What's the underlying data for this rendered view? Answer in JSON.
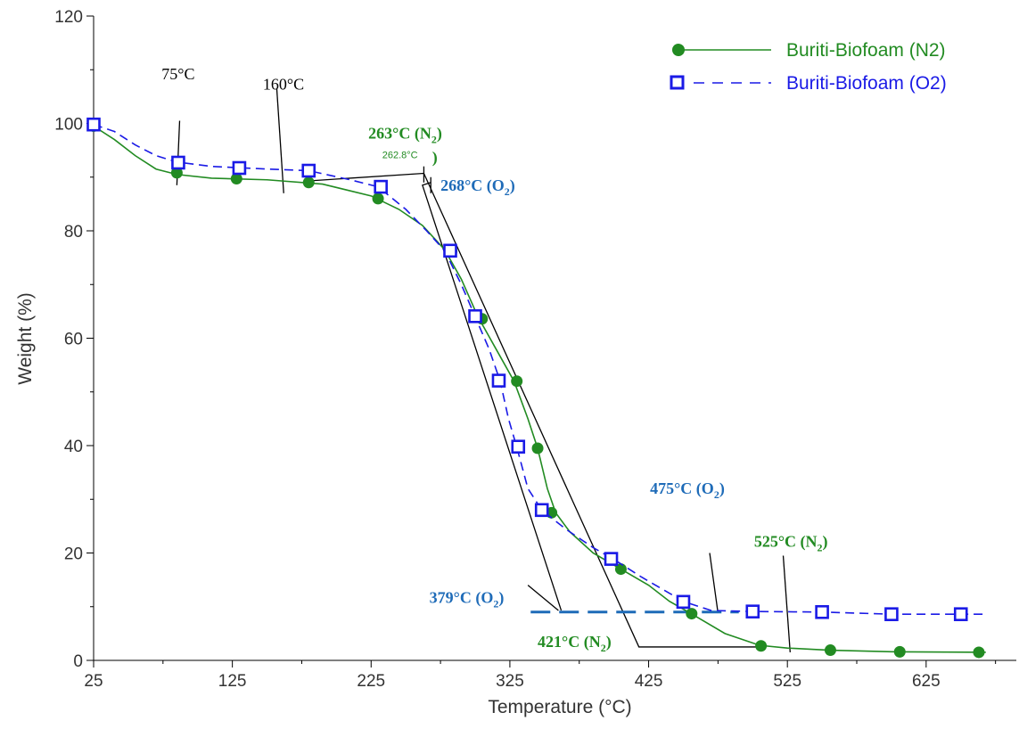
{
  "chart_data": {
    "type": "line",
    "xlabel": "Temperature (°C)",
    "ylabel": "Weight (%)",
    "xlim": [
      25,
      690
    ],
    "ylim": [
      0,
      120
    ],
    "x_ticks": [
      25,
      125,
      225,
      325,
      425,
      525,
      625
    ],
    "y_ticks": [
      0,
      20,
      40,
      60,
      80,
      100,
      120
    ],
    "grid": false,
    "legend_position": "top-right",
    "series": [
      {
        "name": "Buriti-Biofoam (N2)",
        "color": "#228B22",
        "line_style": "solid",
        "marker": "filled-circle",
        "curve": [
          [
            25,
            99.5
          ],
          [
            40,
            97
          ],
          [
            55,
            94
          ],
          [
            70,
            91.5
          ],
          [
            85,
            90.5
          ],
          [
            110,
            89.8
          ],
          [
            150,
            89.5
          ],
          [
            190,
            88.7
          ],
          [
            225,
            86.5
          ],
          [
            245,
            84
          ],
          [
            262,
            81
          ],
          [
            278,
            76.5
          ],
          [
            290,
            71
          ],
          [
            302,
            64
          ],
          [
            315,
            58
          ],
          [
            328,
            52
          ],
          [
            338,
            45
          ],
          [
            345,
            39.5
          ],
          [
            352,
            32
          ],
          [
            358,
            27.5
          ],
          [
            368,
            24
          ],
          [
            385,
            20
          ],
          [
            405,
            17
          ],
          [
            425,
            14
          ],
          [
            440,
            11
          ],
          [
            455,
            8.8
          ],
          [
            480,
            5
          ],
          [
            505,
            2.8
          ],
          [
            525,
            2.3
          ],
          [
            555,
            1.9
          ],
          [
            600,
            1.6
          ],
          [
            668,
            1.5
          ]
        ],
        "markers": [
          [
            25,
            99.5
          ],
          [
            85,
            90.8
          ],
          [
            128,
            89.7
          ],
          [
            180,
            89
          ],
          [
            230,
            86
          ],
          [
            283,
            76.2
          ],
          [
            305,
            63.6
          ],
          [
            330,
            52
          ],
          [
            345,
            39.5
          ],
          [
            355,
            27.5
          ],
          [
            405,
            17
          ],
          [
            456,
            8.7
          ],
          [
            506,
            2.7
          ],
          [
            556,
            1.9
          ],
          [
            606,
            1.6
          ],
          [
            663,
            1.5
          ]
        ]
      },
      {
        "name": "Buriti-Biofoam (O2)",
        "color": "#1A1AE6",
        "line_style": "dashed",
        "marker": "open-square",
        "curve": [
          [
            25,
            99.8
          ],
          [
            40,
            98.5
          ],
          [
            55,
            96
          ],
          [
            70,
            94
          ],
          [
            85,
            92.8
          ],
          [
            110,
            92
          ],
          [
            150,
            91.5
          ],
          [
            180,
            91.2
          ],
          [
            210,
            89.5
          ],
          [
            230,
            88.2
          ],
          [
            250,
            84
          ],
          [
            265,
            80
          ],
          [
            278,
            76.3
          ],
          [
            290,
            70
          ],
          [
            300,
            64
          ],
          [
            310,
            58
          ],
          [
            318,
            52
          ],
          [
            324,
            45
          ],
          [
            330,
            39.7
          ],
          [
            338,
            32
          ],
          [
            348,
            28
          ],
          [
            365,
            24.5
          ],
          [
            385,
            21
          ],
          [
            400,
            18.8
          ],
          [
            420,
            15.5
          ],
          [
            440,
            12.5
          ],
          [
            452,
            10.8
          ],
          [
            470,
            9.3
          ],
          [
            500,
            9.1
          ],
          [
            550,
            9
          ],
          [
            600,
            8.6
          ],
          [
            668,
            8.6
          ]
        ],
        "markers": [
          [
            25,
            99.8
          ],
          [
            86,
            92.7
          ],
          [
            130,
            91.7
          ],
          [
            180,
            91.2
          ],
          [
            232,
            88.2
          ],
          [
            282,
            76.3
          ],
          [
            300,
            64.1
          ],
          [
            317,
            52.1
          ],
          [
            331,
            39.8
          ],
          [
            348,
            28
          ],
          [
            398,
            18.9
          ],
          [
            450,
            10.9
          ],
          [
            500,
            9.1
          ],
          [
            550,
            9
          ],
          [
            600,
            8.6
          ],
          [
            650,
            8.6
          ]
        ]
      }
    ],
    "annotation_lines": [
      {
        "stroke": "#000000",
        "dash": false,
        "points": [
          [
            85,
            88.5
          ],
          [
            87,
            100.5
          ]
        ]
      },
      {
        "stroke": "#000000",
        "dash": false,
        "points": [
          [
            162,
            87
          ],
          [
            157,
            106.5
          ]
        ]
      },
      {
        "stroke": "#000000",
        "dash": false,
        "points": [
          [
            180,
            89.3
          ],
          [
            263,
            90.7
          ],
          [
            418,
            2.5
          ],
          [
            505,
            2.5
          ]
        ]
      },
      {
        "stroke": "#000000",
        "dash": false,
        "points": [
          [
            268,
            89
          ],
          [
            262,
            88.5
          ],
          [
            362,
            9.3
          ]
        ]
      },
      {
        "stroke": "#000000",
        "dash": false,
        "points": [
          [
            263,
            89
          ],
          [
            263,
            92
          ]
        ]
      },
      {
        "stroke": "#000000",
        "dash": false,
        "points": [
          [
            268,
            87
          ],
          [
            268,
            90
          ]
        ]
      },
      {
        "stroke": "#000000",
        "dash": false,
        "points": [
          [
            360,
            9.3
          ],
          [
            338,
            14
          ]
        ]
      },
      {
        "stroke": "#000000",
        "dash": false,
        "points": [
          [
            475,
            8.8
          ],
          [
            469,
            20
          ]
        ]
      },
      {
        "stroke": "#000000",
        "dash": false,
        "points": [
          [
            527,
            1.5
          ],
          [
            522,
            19.5
          ]
        ]
      },
      {
        "stroke": "#1E6BB8",
        "dash": true,
        "points": [
          [
            340,
            9
          ],
          [
            490,
            9
          ]
        ]
      }
    ],
    "annotations": [
      {
        "text": "75°C",
        "x": 74,
        "y": 108.2,
        "color": "#000000",
        "bold": false
      },
      {
        "text": "160°C",
        "x": 147,
        "y": 106.3,
        "color": "#000000",
        "bold": false
      },
      {
        "text": "263°C (N",
        "sub": "2",
        "x": 223,
        "y": 97.2,
        "color": "#228B22",
        "bold": true
      },
      {
        "text": ")",
        "x": 269,
        "y": 92.7,
        "color": "#228B22",
        "bold": true
      },
      {
        "text": "262.8°C",
        "x": 233,
        "y": 93.5,
        "color": "#228B22",
        "bold": false,
        "small": true
      },
      {
        "text": "268°C (O",
        "sub": "2",
        "x": 275,
        "y": 87.5,
        "color": "#1E6BB8",
        "bold": true
      },
      {
        "text": "475°C (O",
        "sub": "2",
        "x": 426,
        "y": 31,
        "color": "#1E6BB8",
        "bold": true
      },
      {
        "text": "525°C (N",
        "sub": "2",
        "x": 501,
        "y": 21.2,
        "color": "#228B22",
        "bold": true
      },
      {
        "text": "379°C (O",
        "sub": "2",
        "x": 267,
        "y": 10.7,
        "color": "#1E6BB8",
        "bold": true
      },
      {
        "text": "421°C (N",
        "sub": "2",
        "x": 345,
        "y": 2.5,
        "color": "#228B22",
        "bold": true
      }
    ]
  }
}
